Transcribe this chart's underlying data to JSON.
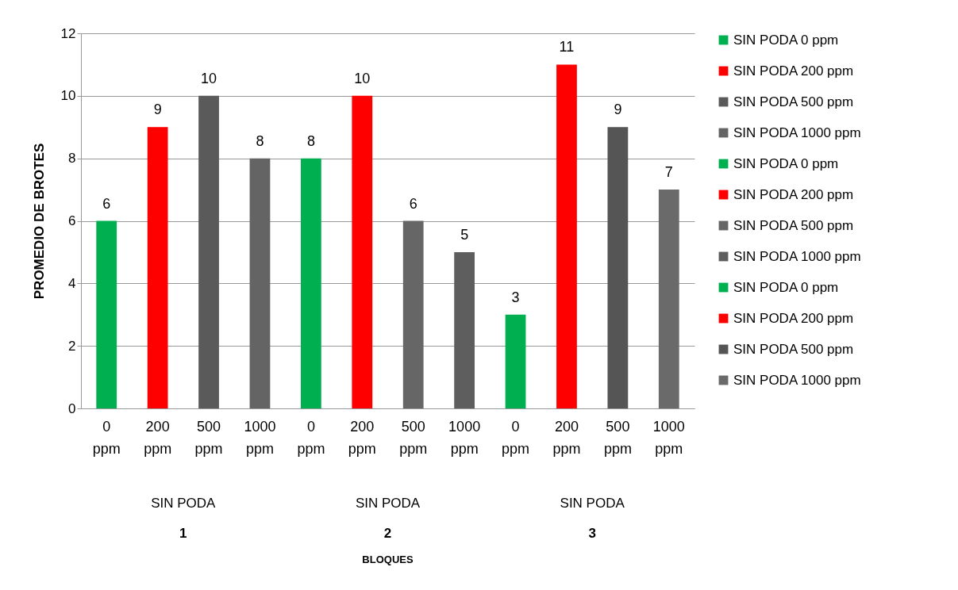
{
  "chart_data": {
    "type": "bar",
    "ylabel": "PROMEDIO DE BROTES",
    "categories": [
      "0 ppm",
      "200 ppm",
      "500 ppm",
      "1000 ppm",
      "0 ppm",
      "200 ppm",
      "500 ppm",
      "1000 ppm",
      "0 ppm",
      "200 ppm",
      "500 ppm",
      "1000 ppm"
    ],
    "series": [
      {
        "name": "SIN PODA 0 ppm",
        "color": "#00b050",
        "values": [
          6,
          null,
          null,
          null,
          null,
          null,
          null,
          null,
          null,
          null,
          null,
          null
        ]
      },
      {
        "name": "SIN PODA 200 ppm",
        "color": "#ff0000",
        "values": [
          null,
          9,
          null,
          null,
          null,
          null,
          null,
          null,
          null,
          null,
          null,
          null
        ]
      },
      {
        "name": "SIN PODA 500 ppm",
        "color": "#5a5a5a",
        "values": [
          null,
          null,
          10,
          null,
          null,
          null,
          null,
          null,
          null,
          null,
          null,
          null
        ]
      },
      {
        "name": "SIN PODA 1000 ppm",
        "color": "#646464",
        "values": [
          null,
          null,
          null,
          8,
          null,
          null,
          null,
          null,
          null,
          null,
          null,
          null
        ]
      },
      {
        "name": "SIN PODA 0 ppm",
        "color": "#00b050",
        "values": [
          null,
          null,
          null,
          null,
          8,
          null,
          null,
          null,
          null,
          null,
          null,
          null
        ]
      },
      {
        "name": "SIN PODA 200 ppm",
        "color": "#ff0000",
        "values": [
          null,
          null,
          null,
          null,
          null,
          10,
          null,
          null,
          null,
          null,
          null,
          null
        ]
      },
      {
        "name": "SIN PODA 500 ppm",
        "color": "#666666",
        "values": [
          null,
          null,
          null,
          null,
          null,
          null,
          6,
          null,
          null,
          null,
          null,
          null
        ]
      },
      {
        "name": "SIN PODA 1000 ppm",
        "color": "#5e5e5e",
        "values": [
          null,
          null,
          null,
          null,
          null,
          null,
          null,
          5,
          null,
          null,
          null,
          null
        ]
      },
      {
        "name": "SIN PODA 0 ppm",
        "color": "#00b050",
        "values": [
          null,
          null,
          null,
          null,
          null,
          null,
          null,
          null,
          3,
          null,
          null,
          null
        ]
      },
      {
        "name": "SIN PODA 200 ppm",
        "color": "#ff0000",
        "values": [
          null,
          null,
          null,
          null,
          null,
          null,
          null,
          null,
          null,
          11,
          null,
          null
        ]
      },
      {
        "name": "SIN PODA 500 ppm",
        "color": "#555555",
        "values": [
          null,
          null,
          null,
          null,
          null,
          null,
          null,
          null,
          null,
          null,
          9,
          null
        ]
      },
      {
        "name": "SIN PODA 1000 ppm",
        "color": "#6a6a6a",
        "values": [
          null,
          null,
          null,
          null,
          null,
          null,
          null,
          null,
          null,
          null,
          null,
          7
        ]
      }
    ],
    "ylim": [
      0,
      12
    ],
    "yticks": [
      0,
      2,
      4,
      6,
      8,
      10,
      12
    ],
    "grid": "y",
    "legend": "right",
    "data_labels": true,
    "annotations": [
      "SIN PODA",
      "SIN PODA",
      "SIN PODA",
      "1",
      "2",
      "3",
      "BLOQUES"
    ]
  }
}
